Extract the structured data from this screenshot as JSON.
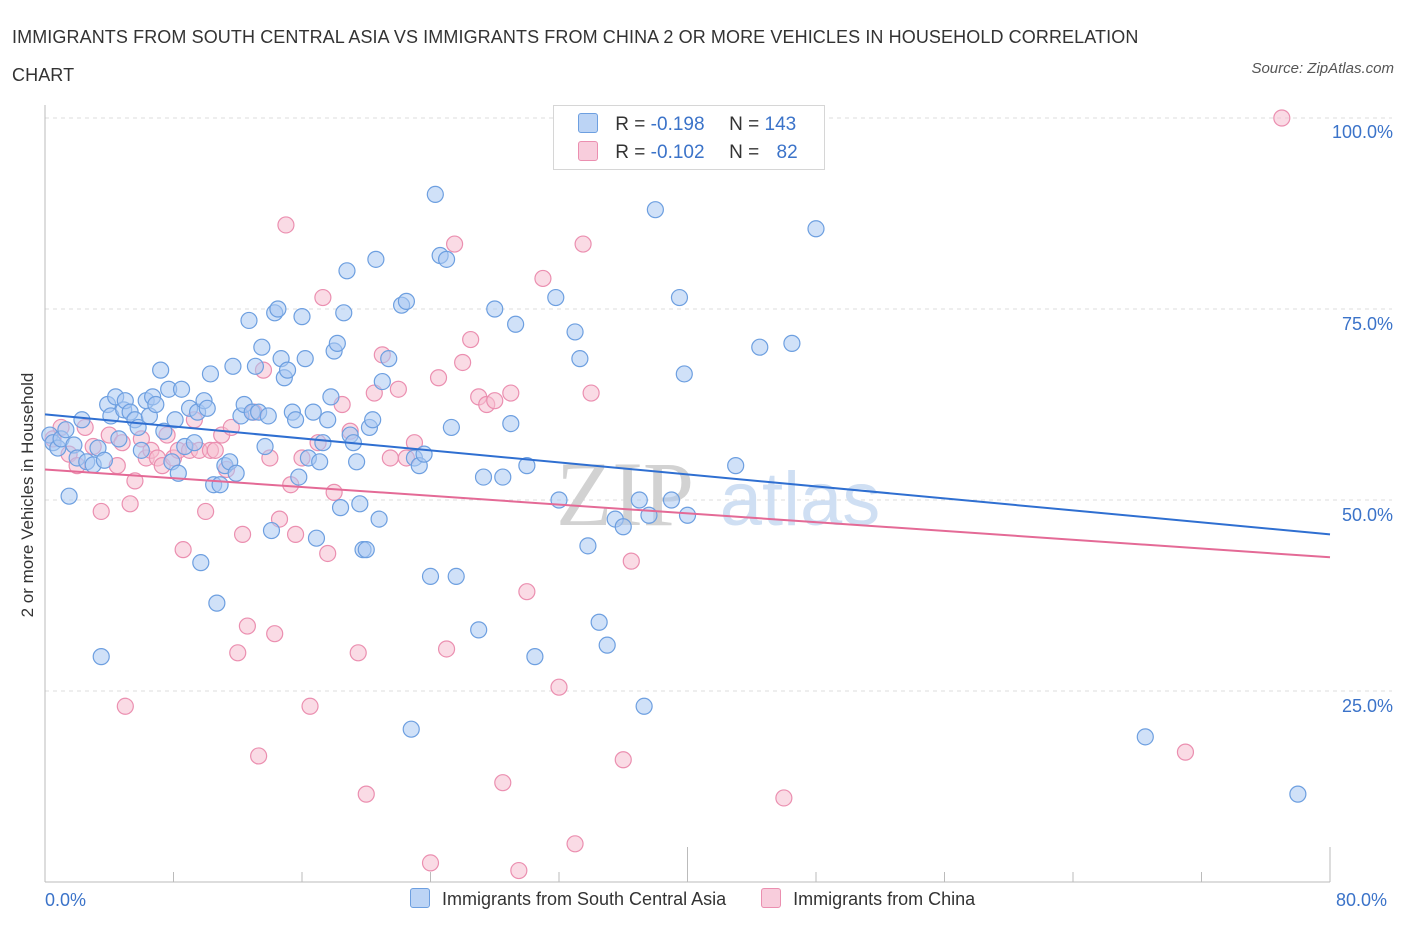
{
  "title": "IMMIGRANTS FROM SOUTH CENTRAL ASIA VS IMMIGRANTS FROM CHINA 2 OR MORE VEHICLES IN HOUSEHOLD CORRELATION CHART",
  "source": "Source: ZipAtlas.com",
  "watermark": {
    "zip": "ZIP",
    "atlas": "atlas"
  },
  "colors": {
    "blue_fill": "#a9c8f2",
    "blue_stroke": "#6d9fe0",
    "blue_line": "#2f6fd1",
    "pink_fill": "#f6bdd0",
    "pink_stroke": "#eb8fb0",
    "pink_line": "#e46a96",
    "axis_label": "#3b73c9",
    "grid": "#dddddd"
  },
  "legend": {
    "series1": {
      "r_label": "R =",
      "r_value": "-0.198",
      "n_label": "N =",
      "n_value": "143"
    },
    "series2": {
      "r_label": "R =",
      "r_value": "-0.102",
      "n_label": "N =",
      "n_value": "82"
    }
  },
  "chart_data": {
    "type": "scatter",
    "title": "IMMIGRANTS FROM SOUTH CENTRAL ASIA VS IMMIGRANTS FROM CHINA 2 OR MORE VEHICLES IN HOUSEHOLD CORRELATION CHART",
    "xlabel": "",
    "ylabel": "2 or more Vehicles in Household",
    "xlim": [
      0,
      80
    ],
    "ylim": [
      0,
      100
    ],
    "x_tick_labels": [
      "0.0%",
      "80.0%"
    ],
    "y_ticks": [
      25,
      50,
      75,
      100
    ],
    "y_tick_labels": [
      "25.0%",
      "50.0%",
      "75.0%",
      "100.0%"
    ],
    "grid": true,
    "series": [
      {
        "name": "Immigrants from South Central Asia",
        "r": -0.198,
        "n": 143,
        "trend": {
          "x": [
            0,
            80
          ],
          "y": [
            61.2,
            45.5
          ]
        },
        "points": [
          [
            0.3,
            58.5
          ],
          [
            0.5,
            57.5
          ],
          [
            0.8,
            56.8
          ],
          [
            1.0,
            58.0
          ],
          [
            1.3,
            59.2
          ],
          [
            1.5,
            50.5
          ],
          [
            1.8,
            57.2
          ],
          [
            2.0,
            55.5
          ],
          [
            2.3,
            60.5
          ],
          [
            2.6,
            55.0
          ],
          [
            3.0,
            54.6
          ],
          [
            3.3,
            56.8
          ],
          [
            3.5,
            29.5
          ],
          [
            3.7,
            55.2
          ],
          [
            3.9,
            62.5
          ],
          [
            4.1,
            61.0
          ],
          [
            4.4,
            63.5
          ],
          [
            4.6,
            58.0
          ],
          [
            4.9,
            61.8
          ],
          [
            5.0,
            63.0
          ],
          [
            5.3,
            61.5
          ],
          [
            5.6,
            60.5
          ],
          [
            5.8,
            59.5
          ],
          [
            6.0,
            56.5
          ],
          [
            6.3,
            63.0
          ],
          [
            6.5,
            61.0
          ],
          [
            6.7,
            63.5
          ],
          [
            6.9,
            62.5
          ],
          [
            7.2,
            67.0
          ],
          [
            7.4,
            59.0
          ],
          [
            7.7,
            64.5
          ],
          [
            7.9,
            55.0
          ],
          [
            8.1,
            60.5
          ],
          [
            8.3,
            53.5
          ],
          [
            8.5,
            64.5
          ],
          [
            8.7,
            57.0
          ],
          [
            9.0,
            62.0
          ],
          [
            9.3,
            57.5
          ],
          [
            9.5,
            61.5
          ],
          [
            9.7,
            41.8
          ],
          [
            9.9,
            63.0
          ],
          [
            10.1,
            62.0
          ],
          [
            10.3,
            66.5
          ],
          [
            10.5,
            52.0
          ],
          [
            10.7,
            36.5
          ],
          [
            10.9,
            52.0
          ],
          [
            11.2,
            54.5
          ],
          [
            11.5,
            55.0
          ],
          [
            11.7,
            67.5
          ],
          [
            11.9,
            53.5
          ],
          [
            12.2,
            61.0
          ],
          [
            12.4,
            62.5
          ],
          [
            12.7,
            73.5
          ],
          [
            12.9,
            61.5
          ],
          [
            13.1,
            67.5
          ],
          [
            13.3,
            61.5
          ],
          [
            13.5,
            70.0
          ],
          [
            13.7,
            57.0
          ],
          [
            13.9,
            61.0
          ],
          [
            14.1,
            46.0
          ],
          [
            14.3,
            74.5
          ],
          [
            14.5,
            75.0
          ],
          [
            14.7,
            68.5
          ],
          [
            14.9,
            66.0
          ],
          [
            15.1,
            67.0
          ],
          [
            15.4,
            61.5
          ],
          [
            15.6,
            60.5
          ],
          [
            15.8,
            53.0
          ],
          [
            16.0,
            74.0
          ],
          [
            16.2,
            68.5
          ],
          [
            16.4,
            55.5
          ],
          [
            16.7,
            61.5
          ],
          [
            16.9,
            45.0
          ],
          [
            17.1,
            55.0
          ],
          [
            17.3,
            57.5
          ],
          [
            17.6,
            60.5
          ],
          [
            17.8,
            63.5
          ],
          [
            18.0,
            69.5
          ],
          [
            18.2,
            70.5
          ],
          [
            18.4,
            49.0
          ],
          [
            18.6,
            74.5
          ],
          [
            18.8,
            80.0
          ],
          [
            19.0,
            58.5
          ],
          [
            19.2,
            57.5
          ],
          [
            19.4,
            55.0
          ],
          [
            19.6,
            49.5
          ],
          [
            19.8,
            43.5
          ],
          [
            20.0,
            43.5
          ],
          [
            20.2,
            59.5
          ],
          [
            20.4,
            60.5
          ],
          [
            20.6,
            81.5
          ],
          [
            20.8,
            47.5
          ],
          [
            21.0,
            65.5
          ],
          [
            21.4,
            68.5
          ],
          [
            22.2,
            75.5
          ],
          [
            22.5,
            76.0
          ],
          [
            22.8,
            20.0
          ],
          [
            23.0,
            55.5
          ],
          [
            23.3,
            54.5
          ],
          [
            23.6,
            56.0
          ],
          [
            24.0,
            40.0
          ],
          [
            24.3,
            90.0
          ],
          [
            24.6,
            82.0
          ],
          [
            25.0,
            81.5
          ],
          [
            25.3,
            59.5
          ],
          [
            25.6,
            40.0
          ],
          [
            27.0,
            33.0
          ],
          [
            27.3,
            53.0
          ],
          [
            28.0,
            75.0
          ],
          [
            28.5,
            53.0
          ],
          [
            29.0,
            60.0
          ],
          [
            29.3,
            73.0
          ],
          [
            30.0,
            54.5
          ],
          [
            30.5,
            29.5
          ],
          [
            31.8,
            76.5
          ],
          [
            32.0,
            50.0
          ],
          [
            33.0,
            72.0
          ],
          [
            33.3,
            68.5
          ],
          [
            33.8,
            44.0
          ],
          [
            34.5,
            34.0
          ],
          [
            35.0,
            31.0
          ],
          [
            35.5,
            47.5
          ],
          [
            36.0,
            46.5
          ],
          [
            37.0,
            50.0
          ],
          [
            37.3,
            23.0
          ],
          [
            37.6,
            48.0
          ],
          [
            38.0,
            88.0
          ],
          [
            39.5,
            76.5
          ],
          [
            39.8,
            66.5
          ],
          [
            40.0,
            48.0
          ],
          [
            39.0,
            50.0
          ],
          [
            43.0,
            54.5
          ],
          [
            44.5,
            70.0
          ],
          [
            46.5,
            70.5
          ],
          [
            48.0,
            85.5
          ],
          [
            68.5,
            19.0
          ],
          [
            78.0,
            11.5
          ]
        ]
      },
      {
        "name": "Immigrants from China",
        "r": -0.102,
        "n": 82,
        "trend": {
          "x": [
            0,
            80
          ],
          "y": [
            54.0,
            42.5
          ]
        },
        "points": [
          [
            0.5,
            58.0
          ],
          [
            1.0,
            59.5
          ],
          [
            1.5,
            56.0
          ],
          [
            2.0,
            54.5
          ],
          [
            2.5,
            59.5
          ],
          [
            3.0,
            57.0
          ],
          [
            3.5,
            48.5
          ],
          [
            4.0,
            58.5
          ],
          [
            4.5,
            54.5
          ],
          [
            4.8,
            57.5
          ],
          [
            5.0,
            23.0
          ],
          [
            5.3,
            49.5
          ],
          [
            5.6,
            52.5
          ],
          [
            6.0,
            58.0
          ],
          [
            6.3,
            55.5
          ],
          [
            6.6,
            56.5
          ],
          [
            7.0,
            55.5
          ],
          [
            7.3,
            54.5
          ],
          [
            7.6,
            58.5
          ],
          [
            8.0,
            55.5
          ],
          [
            8.3,
            56.5
          ],
          [
            8.6,
            43.5
          ],
          [
            9.0,
            56.5
          ],
          [
            9.3,
            60.5
          ],
          [
            9.6,
            56.5
          ],
          [
            10.0,
            48.5
          ],
          [
            10.3,
            56.5
          ],
          [
            10.6,
            56.5
          ],
          [
            11.0,
            58.5
          ],
          [
            11.3,
            54.0
          ],
          [
            11.6,
            59.5
          ],
          [
            12.0,
            30.0
          ],
          [
            12.3,
            45.5
          ],
          [
            12.6,
            33.5
          ],
          [
            13.0,
            61.5
          ],
          [
            13.3,
            16.5
          ],
          [
            13.6,
            67.0
          ],
          [
            14.0,
            55.5
          ],
          [
            14.3,
            32.5
          ],
          [
            14.6,
            47.5
          ],
          [
            15.0,
            86.0
          ],
          [
            15.3,
            52.0
          ],
          [
            15.6,
            45.5
          ],
          [
            16.0,
            55.5
          ],
          [
            16.5,
            23.0
          ],
          [
            17.0,
            57.5
          ],
          [
            17.3,
            76.5
          ],
          [
            17.6,
            43.0
          ],
          [
            18.0,
            51.0
          ],
          [
            18.5,
            62.5
          ],
          [
            19.0,
            59.0
          ],
          [
            19.5,
            30.0
          ],
          [
            20.0,
            11.5
          ],
          [
            20.5,
            64.0
          ],
          [
            21.0,
            69.0
          ],
          [
            21.5,
            55.5
          ],
          [
            22.0,
            64.5
          ],
          [
            22.5,
            55.5
          ],
          [
            23.0,
            57.5
          ],
          [
            24.0,
            2.5
          ],
          [
            24.5,
            66.0
          ],
          [
            25.0,
            30.5
          ],
          [
            25.5,
            83.5
          ],
          [
            26.0,
            68.0
          ],
          [
            26.5,
            71.0
          ],
          [
            27.0,
            63.5
          ],
          [
            27.5,
            62.5
          ],
          [
            28.0,
            63.0
          ],
          [
            28.5,
            13.0
          ],
          [
            29.0,
            64.0
          ],
          [
            29.5,
            1.5
          ],
          [
            30.0,
            38.0
          ],
          [
            31.0,
            79.0
          ],
          [
            32.0,
            25.5
          ],
          [
            33.0,
            5.0
          ],
          [
            33.5,
            83.5
          ],
          [
            34.0,
            64.0
          ],
          [
            36.0,
            16.0
          ],
          [
            36.5,
            42.0
          ],
          [
            46.0,
            11.0
          ],
          [
            71.0,
            17.0
          ],
          [
            77.0,
            100.0
          ]
        ]
      }
    ]
  },
  "x_axis": {
    "min_label": "0.0%",
    "max_label": "80.0%"
  },
  "y_axis": {
    "title": "2 or more Vehicles in Household",
    "labels": [
      "25.0%",
      "50.0%",
      "75.0%",
      "100.0%"
    ]
  },
  "bottom_legend": {
    "item1": "Immigrants from South Central Asia",
    "item2": "Immigrants from China"
  }
}
